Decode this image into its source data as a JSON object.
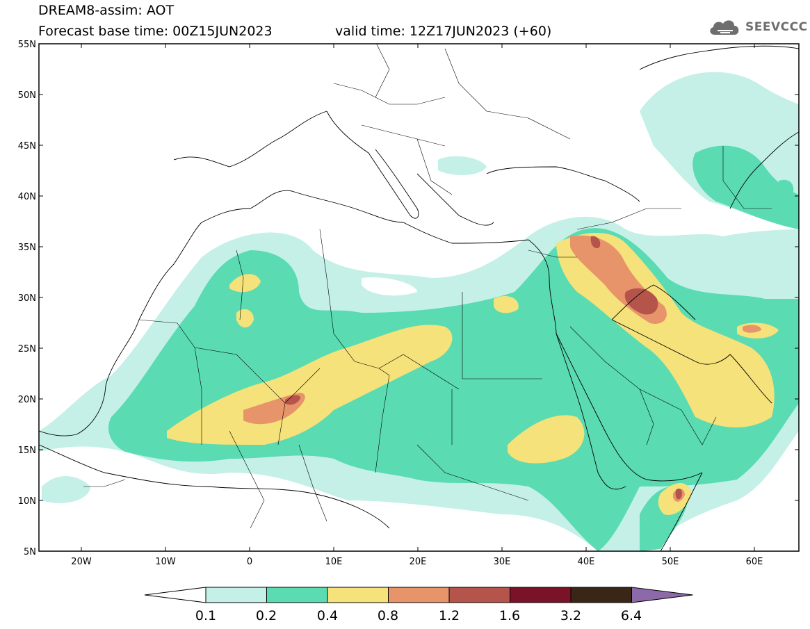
{
  "header": {
    "title": "DREAM8-assim: AOT",
    "base_time": "Forecast base time: 00Z15JUN2023",
    "valid_time": "valid time: 12Z17JUN2023 (+60)"
  },
  "logo": {
    "icon": "cloud-icon",
    "text": "SEEVCCC"
  },
  "map": {
    "lat_labels": [
      "55N",
      "50N",
      "45N",
      "40N",
      "35N",
      "30N",
      "25N",
      "20N",
      "15N",
      "10N",
      "5N"
    ],
    "lon_labels": [
      "20W",
      "10W",
      "0",
      "10E",
      "20E",
      "30E",
      "40E",
      "50E",
      "60E"
    ]
  },
  "colorbar": {
    "labels": [
      "0.1",
      "0.2",
      "0.4",
      "0.8",
      "1.2",
      "1.6",
      "3.2",
      "6.4"
    ],
    "colors": [
      "#c4f0e8",
      "#5adbb2",
      "#f5e27a",
      "#e8946a",
      "#b5544a",
      "#7a1228",
      "#3a2616",
      "#8c6aaa"
    ]
  }
}
